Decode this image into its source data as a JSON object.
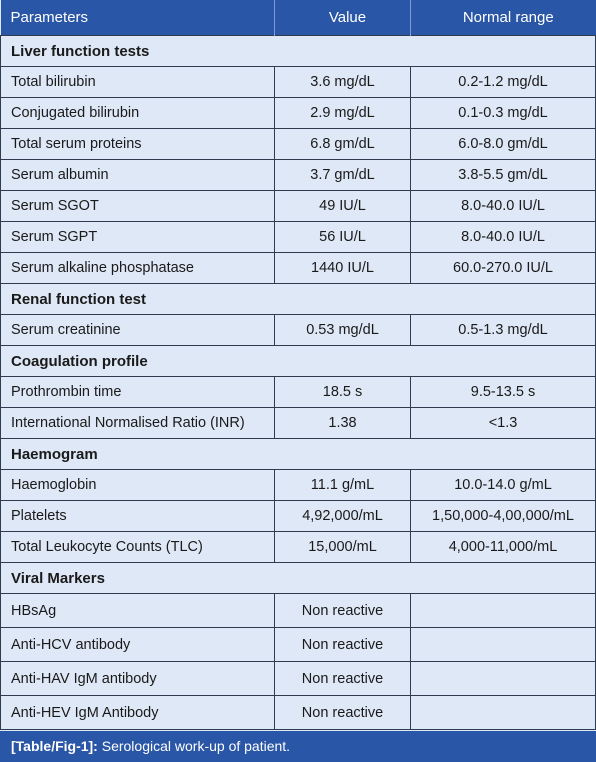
{
  "header": {
    "col1": "Parameters",
    "col2": "Value",
    "col3": "Normal range"
  },
  "rows": [
    {
      "type": "section",
      "label": "Liver function tests"
    },
    {
      "type": "data",
      "param": "Total bilirubin",
      "value": "3.6 mg/dL",
      "range": "0.2-1.2 mg/dL"
    },
    {
      "type": "data",
      "param": "Conjugated bilirubin",
      "value": "2.9 mg/dL",
      "range": "0.1-0.3 mg/dL"
    },
    {
      "type": "data",
      "param": "Total serum proteins",
      "value": "6.8 gm/dL",
      "range": "6.0-8.0 gm/dL"
    },
    {
      "type": "data",
      "param": "Serum albumin",
      "value": "3.7 gm/dL",
      "range": "3.8-5.5 gm/dL"
    },
    {
      "type": "data",
      "param": "Serum SGOT",
      "value": "49 IU/L",
      "range": "8.0-40.0 IU/L"
    },
    {
      "type": "data",
      "param": "Serum SGPT",
      "value": "56 IU/L",
      "range": "8.0-40.0 IU/L"
    },
    {
      "type": "data",
      "param": "Serum alkaline phosphatase",
      "value": "1440 IU/L",
      "range": "60.0-270.0 IU/L"
    },
    {
      "type": "section",
      "label": "Renal function test"
    },
    {
      "type": "data",
      "param": "Serum creatinine",
      "value": "0.53 mg/dL",
      "range": "0.5-1.3 mg/dL"
    },
    {
      "type": "section",
      "label": "Coagulation profile"
    },
    {
      "type": "data",
      "param": "Prothrombin time",
      "value": "18.5 s",
      "range": "9.5-13.5 s"
    },
    {
      "type": "data",
      "param": "International Normalised Ratio (INR)",
      "value": "1.38",
      "range": "<1.3"
    },
    {
      "type": "section",
      "label": "Haemogram"
    },
    {
      "type": "data",
      "param": "Haemoglobin",
      "value": "11.1 g/mL",
      "range": "10.0-14.0 g/mL"
    },
    {
      "type": "data",
      "param": "Platelets",
      "value": "4,92,000/mL",
      "range": "1,50,000-4,00,000/mL"
    },
    {
      "type": "data",
      "param": "Total Leukocyte Counts (TLC)",
      "value": "15,000/mL",
      "range": "4,000-11,000/mL"
    },
    {
      "type": "section",
      "label": "Viral Markers"
    },
    {
      "type": "data",
      "param": "HBsAg",
      "value": "Non reactive",
      "range": ""
    },
    {
      "type": "data",
      "param": "Anti-HCV antibody",
      "value": "Non reactive",
      "range": ""
    },
    {
      "type": "data",
      "param": "Anti-HAV IgM antibody",
      "value": "Non reactive",
      "range": ""
    },
    {
      "type": "data",
      "param": "Anti-HEV IgM Antibody",
      "value": "Non reactive",
      "range": ""
    }
  ],
  "caption": {
    "label": "[Table/Fig-1]:",
    "text": " Serological work-up of patient."
  }
}
